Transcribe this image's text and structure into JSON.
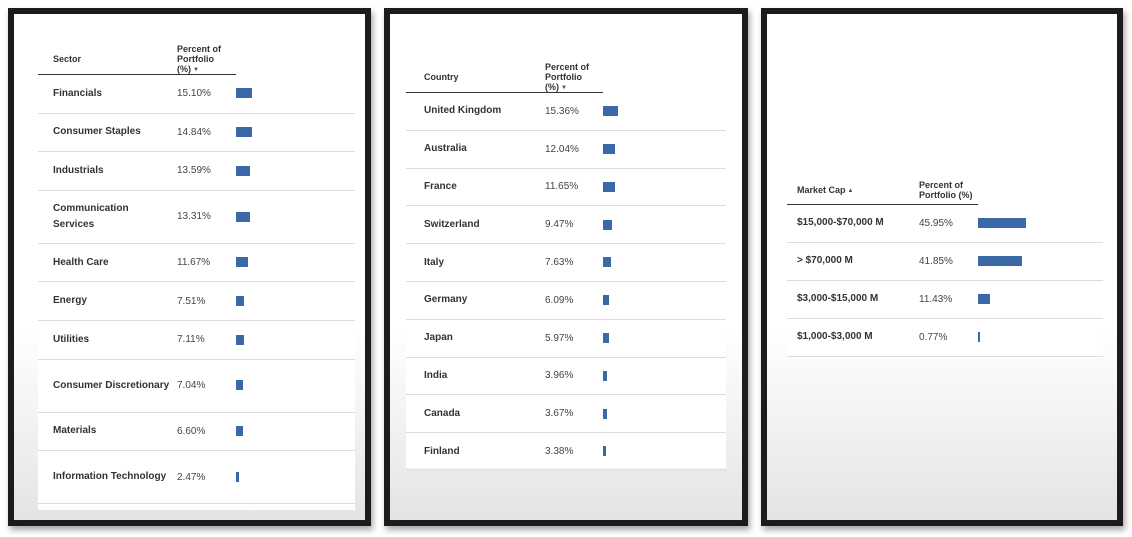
{
  "sector_table": {
    "headers": {
      "name": "Sector",
      "pct": "Percent of Portfolio (%)",
      "sort_icon": "▼"
    },
    "rows": [
      {
        "name": "Financials",
        "pct": "15.10%",
        "value": 15.1
      },
      {
        "name": "Consumer Staples",
        "pct": "14.84%",
        "value": 14.84
      },
      {
        "name": "Industrials",
        "pct": "13.59%",
        "value": 13.59
      },
      {
        "name": "Communication Services",
        "pct": "13.31%",
        "value": 13.31
      },
      {
        "name": "Health Care",
        "pct": "11.67%",
        "value": 11.67
      },
      {
        "name": "Energy",
        "pct": "7.51%",
        "value": 7.51
      },
      {
        "name": "Utilities",
        "pct": "7.11%",
        "value": 7.11
      },
      {
        "name": "Consumer Discretionary",
        "pct": "7.04%",
        "value": 7.04
      },
      {
        "name": "Materials",
        "pct": "6.60%",
        "value": 6.6
      },
      {
        "name": "Information Technology",
        "pct": "2.47%",
        "value": 2.47
      }
    ]
  },
  "country_table": {
    "headers": {
      "name": "Country",
      "pct": "Percent of Portfolio (%)",
      "sort_icon": "▼"
    },
    "rows": [
      {
        "name": "United Kingdom",
        "pct": "15.36%",
        "value": 15.36
      },
      {
        "name": "Australia",
        "pct": "12.04%",
        "value": 12.04
      },
      {
        "name": "France",
        "pct": "11.65%",
        "value": 11.65
      },
      {
        "name": "Switzerland",
        "pct": "9.47%",
        "value": 9.47
      },
      {
        "name": "Italy",
        "pct": "7.63%",
        "value": 7.63
      },
      {
        "name": "Germany",
        "pct": "6.09%",
        "value": 6.09
      },
      {
        "name": "Japan",
        "pct": "5.97%",
        "value": 5.97
      },
      {
        "name": "India",
        "pct": "3.96%",
        "value": 3.96
      },
      {
        "name": "Canada",
        "pct": "3.67%",
        "value": 3.67
      },
      {
        "name": "Finland",
        "pct": "3.38%",
        "value": 3.38
      }
    ]
  },
  "marketcap_table": {
    "headers": {
      "name": "Market Cap",
      "pct": "Percent of Portfolio (%)",
      "sort_icon": "▲"
    },
    "rows": [
      {
        "name": "$15,000-$70,000 M",
        "pct": "45.95%",
        "value": 45.95
      },
      {
        "name": "> $70,000 M",
        "pct": "41.85%",
        "value": 41.85
      },
      {
        "name": "$3,000-$15,000 M",
        "pct": "11.43%",
        "value": 11.43
      },
      {
        "name": "$1,000-$3,000 M",
        "pct": "0.77%",
        "value": 0.77
      }
    ]
  },
  "colors": {
    "bar": "#3a69a8"
  }
}
